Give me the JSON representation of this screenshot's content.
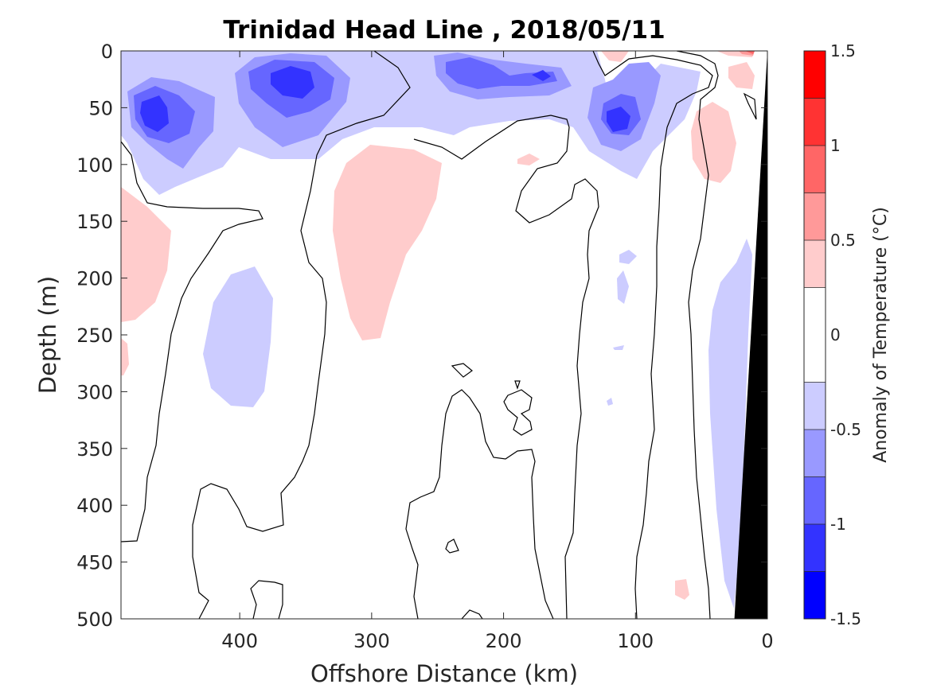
{
  "chart_data": {
    "type": "contour",
    "title": "Trinidad Head Line , 2018/05/11",
    "xlabel": "Offshore Distance (km)",
    "ylabel": "Depth (m)",
    "colorbar_label": "Anomaly of Temperature (°C)",
    "xlim": [
      490,
      0
    ],
    "ylim": [
      0,
      500
    ],
    "x_ticks": [
      400,
      300,
      200,
      100,
      0
    ],
    "x_tick_labels": [
      "400",
      "300",
      "200",
      "100",
      "0"
    ],
    "y_ticks": [
      0,
      50,
      100,
      150,
      200,
      250,
      300,
      350,
      400,
      450,
      500
    ],
    "y_tick_labels": [
      "0",
      "50",
      "100",
      "150",
      "200",
      "250",
      "300",
      "350",
      "400",
      "450",
      "500"
    ],
    "colorbar": {
      "range": [
        -1.5,
        1.5
      ],
      "levels": [
        -1.5,
        -1.25,
        -1.0,
        -0.75,
        -0.5,
        -0.25,
        0.25,
        0.5,
        0.75,
        1.0,
        1.25,
        1.5
      ],
      "colors": [
        "#0000ff",
        "#3333ff",
        "#6666ff",
        "#9999ff",
        "#ccccff",
        "#ffffff",
        "#ffcccc",
        "#ff9999",
        "#ff6666",
        "#ff3333",
        "#ff0000"
      ],
      "ticks": [
        1.5,
        1,
        0.5,
        0,
        -0.5,
        -1,
        -1.5
      ],
      "tick_labels": [
        "1.5",
        "1",
        "0.5",
        "0",
        "-0.5",
        "-1",
        "-1.5"
      ]
    },
    "features": [
      {
        "anomaly": -0.5,
        "label": "cold near-surface layer",
        "x_range": [
          490,
          300
        ],
        "depth_range": [
          0,
          125
        ]
      },
      {
        "anomaly": -1.25,
        "label": "cold core",
        "center": [
          465,
          55
        ]
      },
      {
        "anomaly": -1.25,
        "label": "cold core",
        "center": [
          355,
          25
        ]
      },
      {
        "anomaly": -1.0,
        "label": "cold core",
        "center": [
          220,
          30
        ]
      },
      {
        "anomaly": -1.0,
        "label": "cold core",
        "center": [
          115,
          60
        ]
      },
      {
        "anomaly": -0.5,
        "label": "cold patch",
        "center": [
          385,
          250
        ]
      },
      {
        "anomaly": -0.5,
        "label": "cold nearshore band",
        "x_range": [
          50,
          20
        ],
        "depth_range": [
          200,
          480
        ]
      },
      {
        "anomaly": 0.5,
        "label": "warm patch",
        "center": [
          295,
          160
        ]
      },
      {
        "anomaly": 0.5,
        "label": "warm patch",
        "center": [
          475,
          230
        ]
      },
      {
        "anomaly": 0.5,
        "label": "warm patch",
        "center": [
          45,
          90
        ]
      },
      {
        "anomaly": 0.5,
        "label": "warm patch",
        "center": [
          70,
          470
        ]
      },
      {
        "anomaly": 1.0,
        "label": "warm surface spot",
        "center": [
          15,
          3
        ]
      }
    ],
    "bathymetry": {
      "label": "shelf/slope (no data)",
      "points": [
        [
          0,
          0
        ],
        [
          0,
          500
        ],
        [
          25,
          500
        ]
      ]
    }
  }
}
